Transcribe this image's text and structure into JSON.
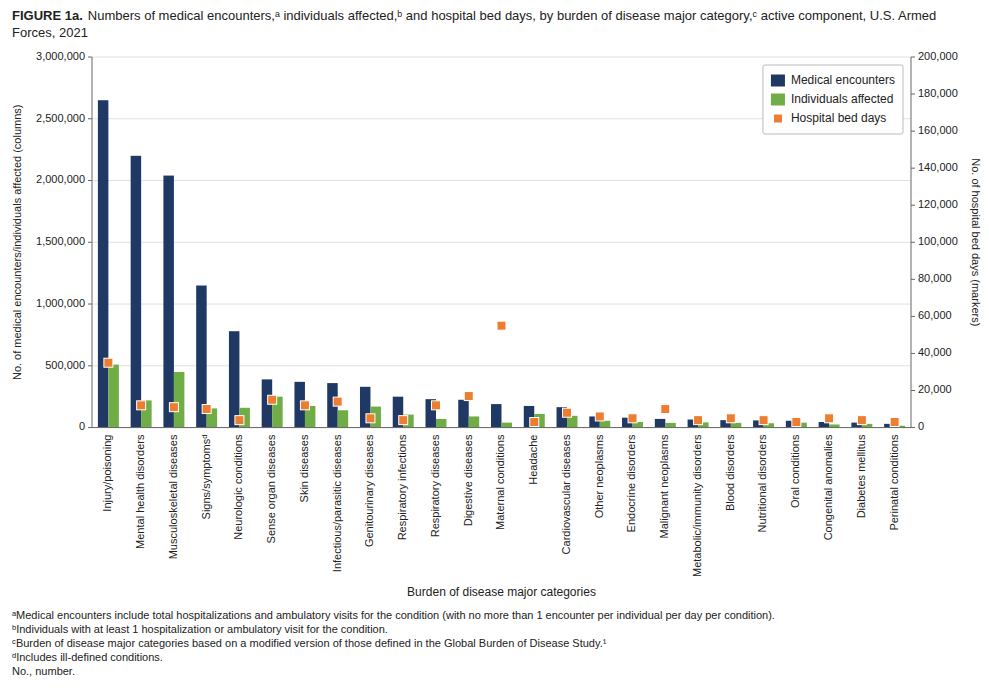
{
  "chart_data": {
    "type": "bar",
    "title": "FIGURE 1a.",
    "subtitle": "Numbers of medical encounters,ᵃ individuals affected,ᵇ and hospital bed days, by burden of disease major category,ᶜ active component, U.S. Armed Forces, 2021",
    "xlabel": "Burden of disease major categories",
    "ylabel": "No. of medical encounters/individuals affected (columns)",
    "y2label": "No. of hospital bed days (markers)",
    "categories": [
      "Injury/poisoning",
      "Mental health disorders",
      "Musculoskeletal diseases",
      "Signs/symptomsᵈ",
      "Neurologic conditions",
      "Sense organ diseases",
      "Skin diseases",
      "Infectious/parasitic diseases",
      "Genitourinary diseases",
      "Respiratory infections",
      "Respiratory diseases",
      "Digestive diseases",
      "Maternal conditions",
      "Headache",
      "Cardiovascular diseases",
      "Other neoplasms",
      "Endocrine disorders",
      "Malignant neoplasms",
      "Metabolic/immunity disorders",
      "Blood disorders",
      "Nutritional disorders",
      "Oral conditions",
      "Congenital anomalies",
      "Diabetes mellitus",
      "Perinatal conditions"
    ],
    "series": [
      {
        "name": "Medical encounters",
        "color": "#1f3864",
        "type": "bar",
        "values": [
          2650000,
          2200000,
          2040000,
          1150000,
          780000,
          390000,
          370000,
          360000,
          330000,
          250000,
          230000,
          225000,
          190000,
          175000,
          165000,
          90000,
          80000,
          70000,
          65000,
          60000,
          58000,
          55000,
          45000,
          40000,
          30000
        ]
      },
      {
        "name": "Individuals affected",
        "color": "#70ad47",
        "type": "bar",
        "values": [
          510000,
          220000,
          450000,
          155000,
          160000,
          250000,
          175000,
          140000,
          170000,
          105000,
          70000,
          90000,
          40000,
          110000,
          95000,
          55000,
          45000,
          38000,
          42000,
          38000,
          35000,
          40000,
          25000,
          30000,
          15000
        ]
      },
      {
        "name": "Hospital bed days",
        "color": "#ed7d31",
        "type": "scatter",
        "marker": "square",
        "axis": "y2",
        "values": [
          35000,
          12000,
          11000,
          10000,
          4000,
          15000,
          12000,
          14000,
          5000,
          4000,
          12000,
          17000,
          55000,
          3000,
          8000,
          6000,
          5000,
          10000,
          4000,
          5000,
          4000,
          3000,
          5000,
          4000,
          3000
        ]
      }
    ],
    "ylim": [
      0,
      3000000
    ],
    "yticks": [
      0,
      {
        "value": 500000,
        "label": "500,000"
      },
      {
        "value": 1000000,
        "label": "1,000,000"
      },
      {
        "value": 1500000,
        "label": "1,500,000"
      },
      {
        "value": 2000000,
        "label": "2,000,000"
      },
      {
        "value": 2500000,
        "label": "2,500,000"
      },
      {
        "value": 3000000,
        "label": "3,000,000"
      }
    ],
    "y2lim": [
      0,
      200000
    ],
    "y2ticks": [
      0,
      {
        "value": 20000,
        "label": "20,000"
      },
      {
        "value": 40000,
        "label": "40,000"
      },
      {
        "value": 60000,
        "label": "60,000"
      },
      {
        "value": 80000,
        "label": "80,000"
      },
      {
        "value": 100000,
        "label": "100,000"
      },
      {
        "value": 120000,
        "label": "120,000"
      },
      {
        "value": 140000,
        "label": "140,000"
      },
      {
        "value": 160000,
        "label": "160,000"
      },
      {
        "value": 180000,
        "label": "180,000"
      },
      {
        "value": 200000,
        "label": "200,000"
      }
    ],
    "grid": true,
    "legend": "upper right",
    "annotations": [
      "ᵃMedical encounters include total hospitalizations and ambulatory visits for the condition (with no more than 1 encounter per individual per day per condition).",
      "ᵇIndividuals with at least 1 hospitalization or ambulatory visit for the condition.",
      "ᶜBurden of disease major categories based on a modified version of those defined in the Global Burden of Disease Study.¹",
      "ᵈIncludes ill-defined conditions.",
      "No., number."
    ]
  }
}
